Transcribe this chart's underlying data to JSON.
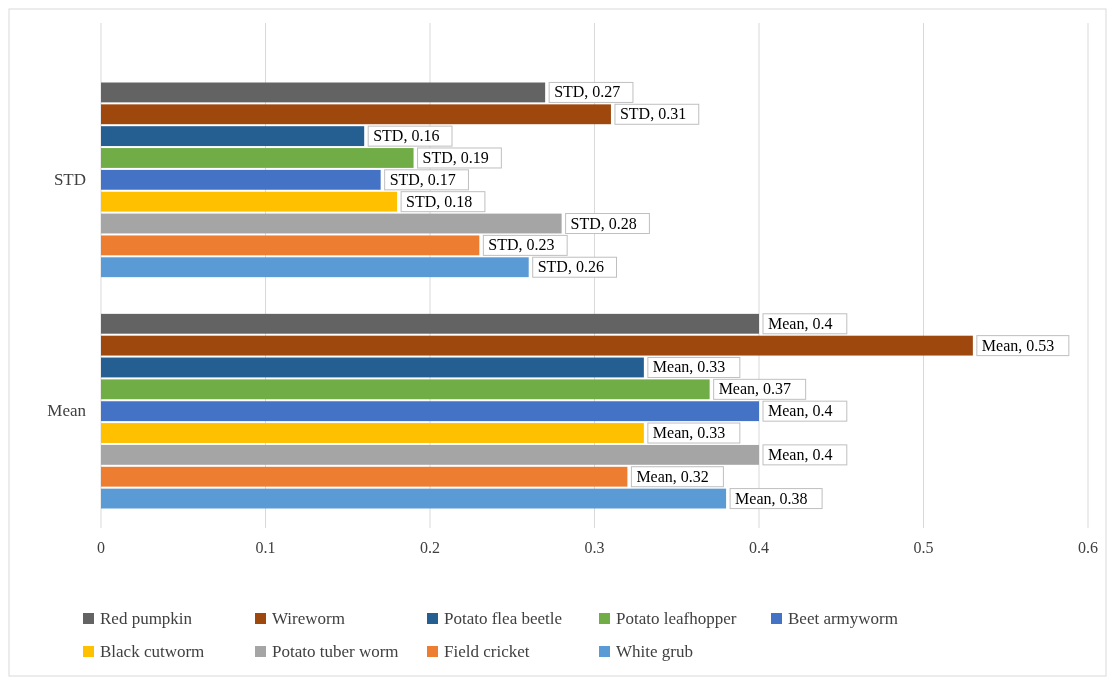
{
  "chart_data": {
    "type": "bar",
    "orientation": "horizontal",
    "categories": [
      "STD",
      "Mean"
    ],
    "series": [
      {
        "name": "Red pumpkin",
        "color": "#636363",
        "values": [
          0.27,
          0.4
        ],
        "value_labels": [
          "STD, 0.27",
          "Mean, 0.4"
        ]
      },
      {
        "name": "Wireworm",
        "color": "#9e480e",
        "values": [
          0.31,
          0.53
        ],
        "value_labels": [
          "STD, 0.31",
          "Mean, 0.53"
        ]
      },
      {
        "name": "Potato flea beetle",
        "color": "#255e91",
        "values": [
          0.16,
          0.33
        ],
        "value_labels": [
          "STD, 0.16",
          "Mean, 0.33"
        ]
      },
      {
        "name": "Potato leafhopper",
        "color": "#70ad47",
        "values": [
          0.19,
          0.37
        ],
        "value_labels": [
          "STD, 0.19",
          "Mean, 0.37"
        ]
      },
      {
        "name": "Beet armyworm",
        "color": "#4472c4",
        "values": [
          0.17,
          0.4
        ],
        "value_labels": [
          "STD, 0.17",
          "Mean, 0.4"
        ]
      },
      {
        "name": "Black cutworm",
        "color": "#ffc000",
        "values": [
          0.18,
          0.33
        ],
        "value_labels": [
          "STD, 0.18",
          "Mean, 0.33"
        ]
      },
      {
        "name": "Potato tuber worm",
        "color": "#a5a5a5",
        "values": [
          0.28,
          0.4
        ],
        "value_labels": [
          "STD, 0.28",
          "Mean, 0.4"
        ]
      },
      {
        "name": "Field cricket",
        "color": "#ed7d31",
        "values": [
          0.23,
          0.32
        ],
        "value_labels": [
          "STD, 0.23",
          "Mean, 0.32"
        ]
      },
      {
        "name": "White grub",
        "color": "#5b9bd5",
        "values": [
          0.26,
          0.38
        ],
        "value_labels": [
          "STD, 0.26",
          "Mean, 0.38"
        ]
      }
    ],
    "xlim": [
      0,
      0.6
    ],
    "xticks": [
      0,
      0.1,
      0.2,
      0.3,
      0.4,
      0.5,
      0.6
    ],
    "grid": "x",
    "legend": "bottom"
  }
}
